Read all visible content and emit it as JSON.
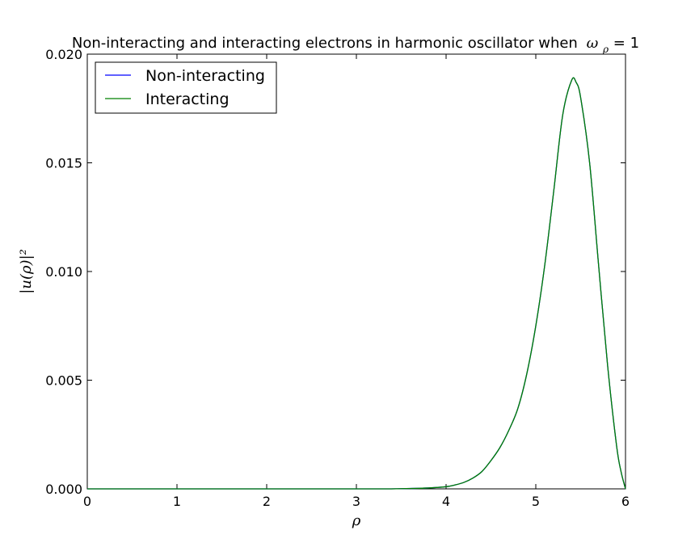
{
  "chart_data": {
    "type": "line",
    "title": "Non-interacting and interacting electrons in harmonic oscillator when",
    "title_math": "ω",
    "title_math_sub": "ρ",
    "title_suffix": " = 1",
    "xlabel": "ρ",
    "ylabel": "|u(ρ)|²",
    "xlim": [
      0,
      6
    ],
    "ylim": [
      0,
      0.02
    ],
    "xticks": [
      0,
      1,
      2,
      3,
      4,
      5,
      6
    ],
    "xtick_labels": [
      "0",
      "1",
      "2",
      "3",
      "4",
      "5",
      "6"
    ],
    "yticks": [
      0,
      0.005,
      0.01,
      0.015,
      0.02
    ],
    "ytick_labels": [
      "0.000",
      "0.005",
      "0.010",
      "0.015",
      "0.020"
    ],
    "grid": false,
    "legend_position": "top-left",
    "series": [
      {
        "name": "Non-interacting",
        "color": "#0000ff",
        "x": [
          0,
          3.0,
          3.5,
          3.8,
          4.0,
          4.1,
          4.2,
          4.3,
          4.4,
          4.5,
          4.6,
          4.7,
          4.8,
          4.9,
          5.0,
          5.1,
          5.2,
          5.3,
          5.4,
          5.45,
          5.5,
          5.6,
          5.7,
          5.8,
          5.9,
          5.95,
          6.0
        ],
        "y": [
          0,
          0,
          1e-05,
          4e-05,
          0.0001,
          0.00018,
          0.0003,
          0.0005,
          0.0008,
          0.0013,
          0.0019,
          0.0027,
          0.0037,
          0.0053,
          0.0075,
          0.0103,
          0.0137,
          0.0172,
          0.0188,
          0.0187,
          0.018,
          0.015,
          0.0103,
          0.0057,
          0.002,
          0.0008,
          0.0
        ]
      },
      {
        "name": "Interacting",
        "color": "#008000",
        "x": [
          0,
          3.0,
          3.5,
          3.8,
          4.0,
          4.1,
          4.2,
          4.3,
          4.4,
          4.5,
          4.6,
          4.7,
          4.8,
          4.9,
          5.0,
          5.1,
          5.2,
          5.3,
          5.4,
          5.45,
          5.5,
          5.6,
          5.7,
          5.8,
          5.9,
          5.95,
          6.0
        ],
        "y": [
          0,
          0,
          1e-05,
          4e-05,
          0.0001,
          0.00018,
          0.0003,
          0.0005,
          0.0008,
          0.0013,
          0.0019,
          0.0027,
          0.0037,
          0.0053,
          0.0075,
          0.0103,
          0.0137,
          0.0172,
          0.0188,
          0.0187,
          0.018,
          0.015,
          0.0103,
          0.0057,
          0.002,
          0.0008,
          0.0
        ]
      }
    ]
  }
}
